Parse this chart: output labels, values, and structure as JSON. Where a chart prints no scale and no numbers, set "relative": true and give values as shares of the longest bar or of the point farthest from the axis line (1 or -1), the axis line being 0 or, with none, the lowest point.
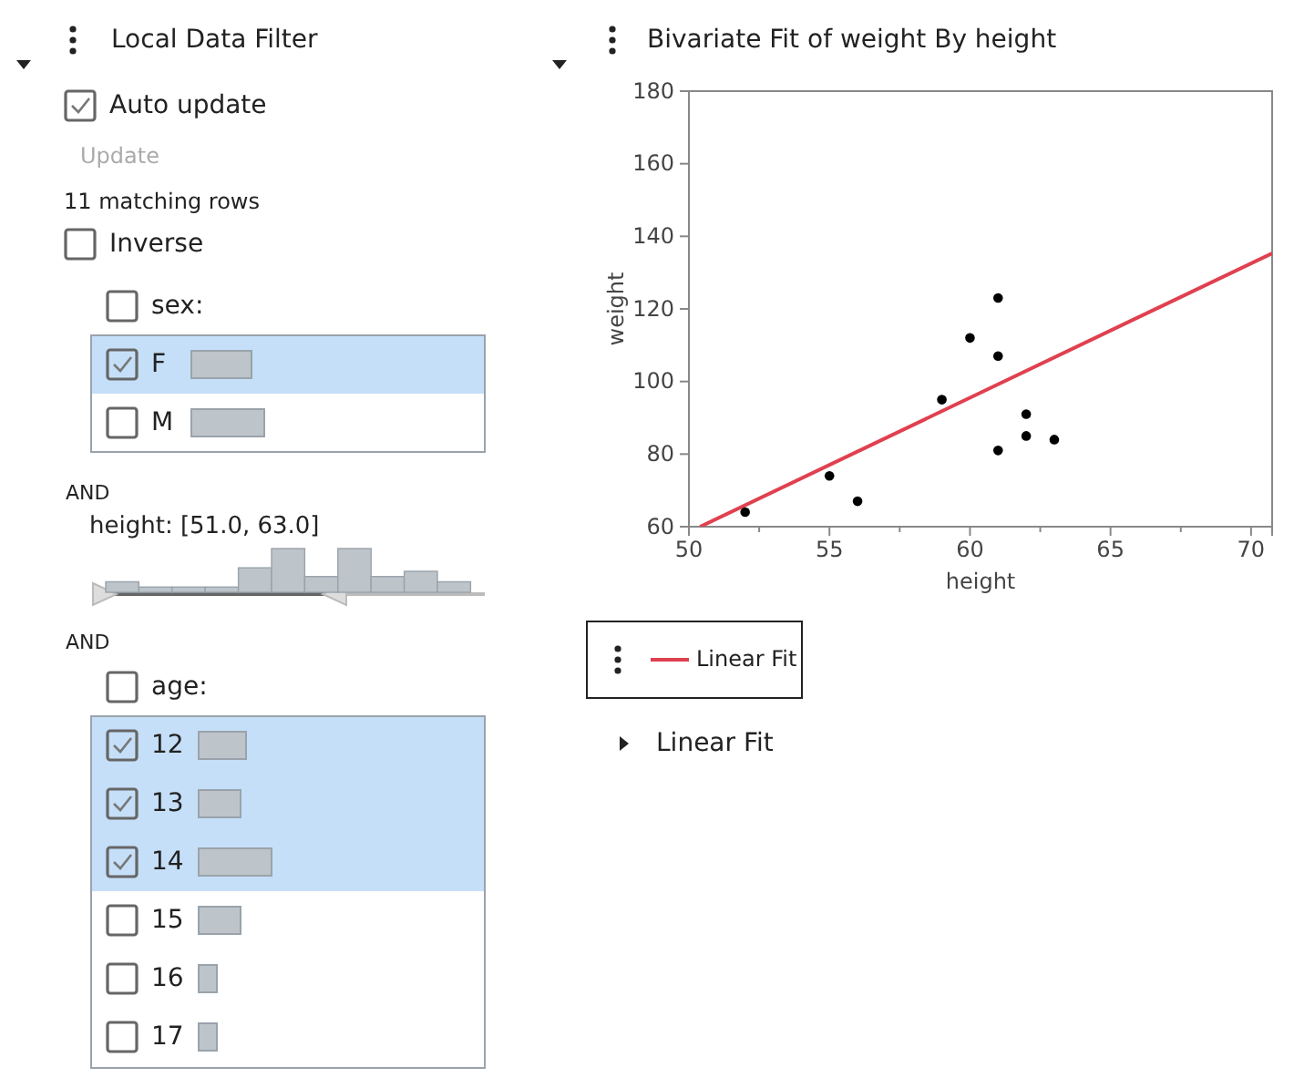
{
  "chart_data": [
    {
      "type": "other",
      "annotations": [
        "Local Data Filter",
        "Auto update",
        "Update",
        "11 matching rows",
        "Inverse",
        "sex:",
        "AND",
        "height: [51.0, 63.0]",
        "AND",
        "age:"
      ]
    },
    {
      "type": "bar",
      "orientation": "horizontal",
      "relative": true,
      "categories": [
        "F",
        "M"
      ],
      "values": [
        0.825,
        1
      ],
      "color": "#bdc4ca"
    },
    {
      "type": "bar",
      "relative": true,
      "categories": [
        null,
        null,
        null,
        null,
        null,
        null,
        null,
        null,
        null,
        null,
        null
      ],
      "values": [
        0.24,
        0.12,
        0.12,
        0.12,
        0.56,
        1,
        0.36,
        1,
        0.36,
        0.48,
        0.24
      ],
      "color": "#bdc4ca"
    },
    {
      "type": "bar",
      "orientation": "horizontal",
      "relative": true,
      "categories": [
        "12",
        "13",
        "14",
        "15",
        "16",
        "17"
      ],
      "values": [
        0.65,
        0.575,
        1,
        0.575,
        0.25,
        0.25
      ],
      "color": "#bdc4ca"
    },
    {
      "type": "scatter",
      "title": "Bivariate Fit of weight By height",
      "xlabel": "height",
      "ylabel": "weight",
      "xlim": [
        50,
        70.75
      ],
      "ylim": [
        60,
        180
      ],
      "xticks": [
        50,
        {
          "value": 52.5,
          "label": null
        },
        55,
        {
          "value": 57.5,
          "label": null
        },
        60,
        {
          "value": 62.5,
          "label": null
        },
        65,
        {
          "value": 67.5,
          "label": null
        },
        70
      ],
      "yticks": [
        60,
        80,
        100,
        120,
        140,
        160,
        180
      ],
      "legend": "bottom left",
      "annotations": [
        "Linear Fit"
      ],
      "series": [
        {
          "type": "scatter",
          "marker": "circle",
          "color": "#000000",
          "x": [
            52,
            55,
            56,
            59,
            60,
            61,
            61,
            61,
            62,
            62,
            63
          ],
          "values": [
            64,
            74,
            67,
            95,
            112,
            123,
            107,
            81,
            91,
            85,
            84
          ]
        },
        {
          "type": "line",
          "marker": "none",
          "name": "Linear Fit",
          "color": "#e0404f",
          "x": [
            50.4,
            70.75
          ],
          "values": [
            60,
            135.3
          ]
        }
      ]
    }
  ]
}
